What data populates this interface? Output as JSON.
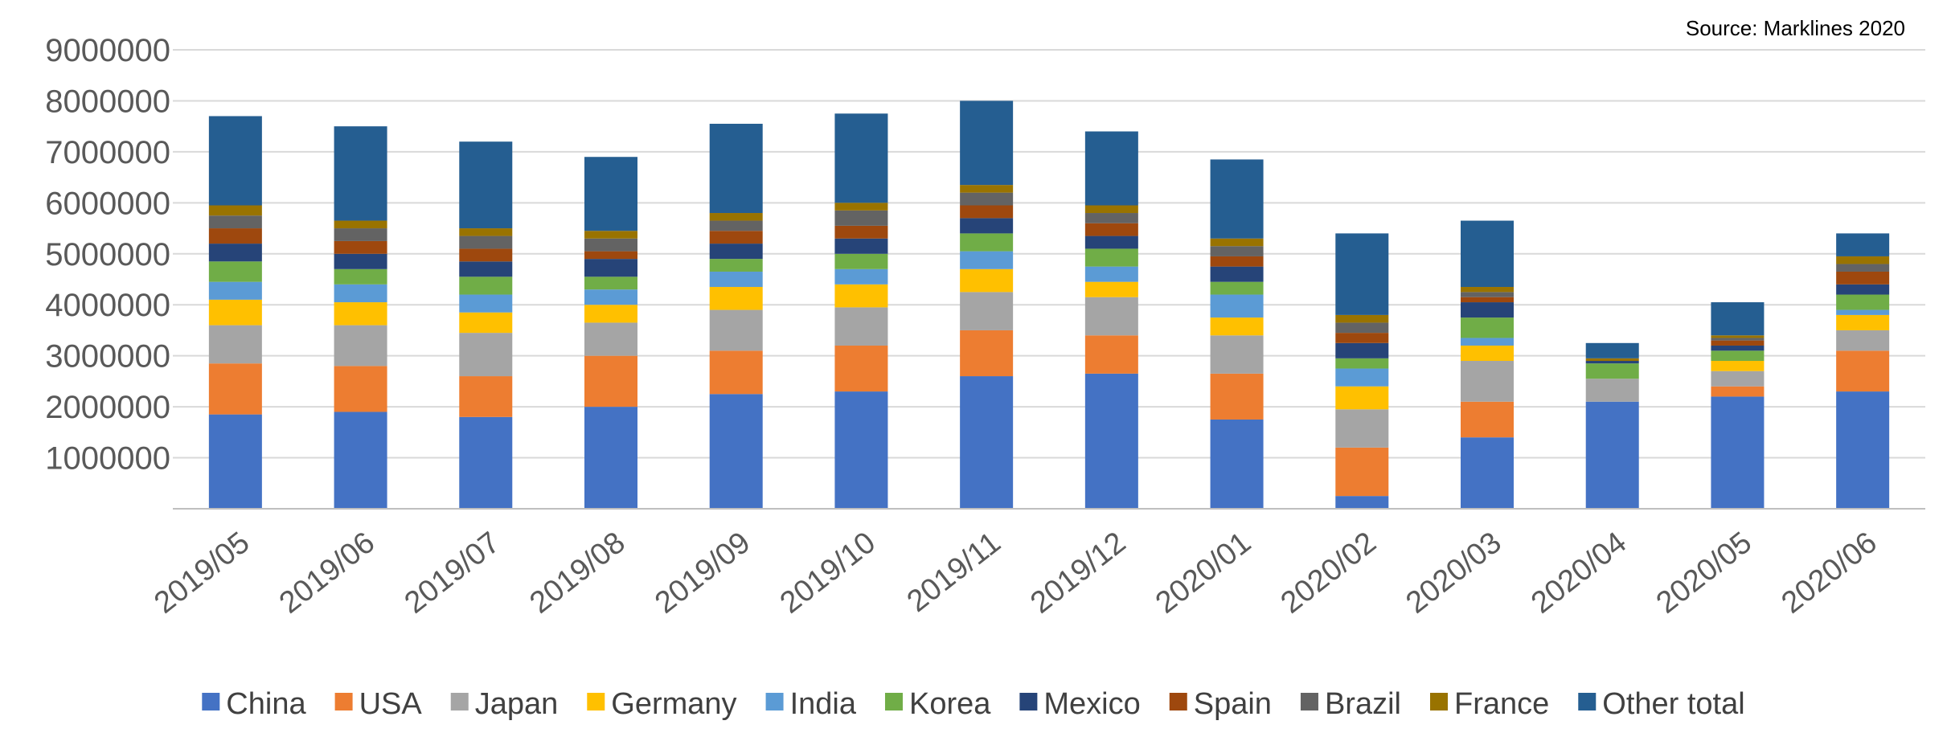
{
  "source_note": "Source: Marklines 2020",
  "chart_data": {
    "type": "bar",
    "stacked": true,
    "title": "",
    "xlabel": "",
    "ylabel": "",
    "ylim": [
      0,
      9000000
    ],
    "yticks": [
      "1000000",
      "2000000",
      "3000000",
      "4000000",
      "5000000",
      "6000000",
      "7000000",
      "8000000",
      "9000000"
    ],
    "grid": true,
    "legend_position": "bottom",
    "categories": [
      "2019/05",
      "2019/06",
      "2019/07",
      "2019/08",
      "2019/09",
      "2019/10",
      "2019/11",
      "2019/12",
      "2020/01",
      "2020/02",
      "2020/03",
      "2020/04",
      "2020/05",
      "2020/06"
    ],
    "series": [
      {
        "name": "China",
        "color": "#4472C4",
        "values": [
          1850000,
          1900000,
          1800000,
          2000000,
          2250000,
          2300000,
          2600000,
          2650000,
          1750000,
          250000,
          1400000,
          2100000,
          2200000,
          2300000
        ]
      },
      {
        "name": "USA",
        "color": "#ED7D31",
        "values": [
          1000000,
          900000,
          800000,
          1000000,
          850000,
          900000,
          900000,
          750000,
          900000,
          950000,
          700000,
          0,
          200000,
          800000
        ]
      },
      {
        "name": "Japan",
        "color": "#A5A5A5",
        "values": [
          750000,
          800000,
          850000,
          650000,
          800000,
          750000,
          750000,
          750000,
          750000,
          750000,
          800000,
          450000,
          300000,
          400000
        ]
      },
      {
        "name": "Germany",
        "color": "#FFC000",
        "values": [
          500000,
          450000,
          400000,
          350000,
          450000,
          450000,
          450000,
          300000,
          350000,
          450000,
          300000,
          0,
          200000,
          300000
        ]
      },
      {
        "name": "India",
        "color": "#5B9BD5",
        "values": [
          350000,
          350000,
          350000,
          300000,
          300000,
          300000,
          350000,
          300000,
          450000,
          350000,
          150000,
          0,
          0,
          100000
        ]
      },
      {
        "name": "Korea",
        "color": "#70AD47",
        "values": [
          400000,
          300000,
          350000,
          250000,
          250000,
          300000,
          350000,
          350000,
          250000,
          200000,
          400000,
          300000,
          200000,
          300000
        ]
      },
      {
        "name": "Mexico",
        "color": "#264478",
        "values": [
          350000,
          300000,
          300000,
          350000,
          300000,
          300000,
          300000,
          250000,
          300000,
          300000,
          300000,
          50000,
          100000,
          200000
        ]
      },
      {
        "name": "Spain",
        "color": "#9E480E",
        "values": [
          300000,
          250000,
          250000,
          150000,
          250000,
          250000,
          250000,
          250000,
          200000,
          200000,
          100000,
          0,
          100000,
          250000
        ]
      },
      {
        "name": "Brazil",
        "color": "#636363",
        "values": [
          250000,
          250000,
          250000,
          250000,
          200000,
          300000,
          250000,
          200000,
          200000,
          200000,
          100000,
          0,
          50000,
          150000
        ]
      },
      {
        "name": "France",
        "color": "#997300",
        "values": [
          200000,
          150000,
          150000,
          150000,
          150000,
          150000,
          150000,
          150000,
          150000,
          150000,
          100000,
          50000,
          50000,
          150000
        ]
      },
      {
        "name": "Other total",
        "color": "#255E91",
        "values": [
          1750000,
          1850000,
          1700000,
          1450000,
          1750000,
          1750000,
          1650000,
          1450000,
          1550000,
          1600000,
          1300000,
          300000,
          650000,
          450000
        ]
      }
    ]
  }
}
